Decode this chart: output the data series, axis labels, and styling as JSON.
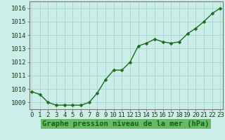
{
  "x": [
    0,
    1,
    2,
    3,
    4,
    5,
    6,
    7,
    8,
    9,
    10,
    11,
    12,
    13,
    14,
    15,
    16,
    17,
    18,
    19,
    20,
    21,
    22,
    23
  ],
  "y": [
    1009.8,
    1009.6,
    1009.0,
    1008.8,
    1008.8,
    1008.8,
    1008.8,
    1009.0,
    1009.7,
    1010.7,
    1011.4,
    1011.4,
    1012.0,
    1013.2,
    1013.4,
    1013.7,
    1013.5,
    1013.4,
    1013.5,
    1014.1,
    1014.5,
    1015.0,
    1015.6,
    1016.0
  ],
  "ylim": [
    1008.5,
    1016.5
  ],
  "yticks": [
    1009,
    1010,
    1011,
    1012,
    1013,
    1014,
    1015,
    1016
  ],
  "xticks": [
    0,
    1,
    2,
    3,
    4,
    5,
    6,
    7,
    8,
    9,
    10,
    11,
    12,
    13,
    14,
    15,
    16,
    17,
    18,
    19,
    20,
    21,
    22,
    23
  ],
  "xlabel": "Graphe pression niveau de la mer (hPa)",
  "line_color": "#1a6b1a",
  "marker": "D",
  "marker_size": 2.5,
  "bg_color": "#cceee8",
  "grid_color": "#aad8d0",
  "border_color": "#777777",
  "tick_label_fontsize": 6.5,
  "xlabel_fontsize": 7.5,
  "line_width": 1.0,
  "xlabel_color": "#1a5c1a",
  "xlabel_bg": "#66bb66"
}
